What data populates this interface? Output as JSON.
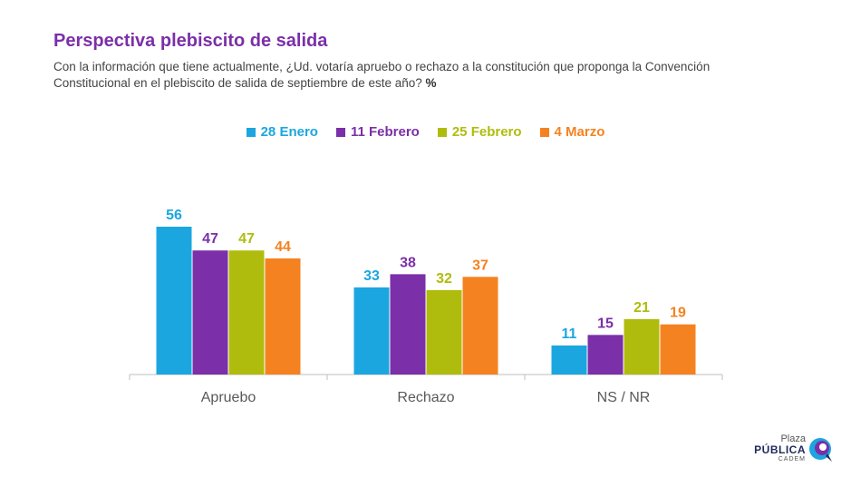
{
  "header": {
    "title": "Perspectiva plebiscito de salida",
    "subtitle": "Con la información que tiene actualmente, ¿Ud. votaría apruebo o rechazo a la constitución que proponga la Convención Constitucional en el plebiscito de salida de septiembre de este año?",
    "unit": "%"
  },
  "logo": {
    "line1": "Plaza",
    "line2": "PÚBLICA",
    "line3": "CADEM"
  },
  "chart_data": {
    "type": "bar",
    "categories": [
      "Apruebo",
      "Rechazo",
      "NS / NR"
    ],
    "series": [
      {
        "name": "28 Enero",
        "values": [
          56,
          33,
          11
        ],
        "color": "#1ba6e0"
      },
      {
        "name": "11 Febrero",
        "values": [
          47,
          38,
          15
        ],
        "color": "#7b2fa8"
      },
      {
        "name": "25 Febrero",
        "values": [
          47,
          32,
          21
        ],
        "color": "#b0bc0d"
      },
      {
        "name": "4 Marzo",
        "values": [
          44,
          37,
          19
        ],
        "color": "#f58220"
      }
    ],
    "ylim": [
      0,
      60
    ],
    "grid": false,
    "legend_position": "top-center",
    "data_labels": true
  }
}
